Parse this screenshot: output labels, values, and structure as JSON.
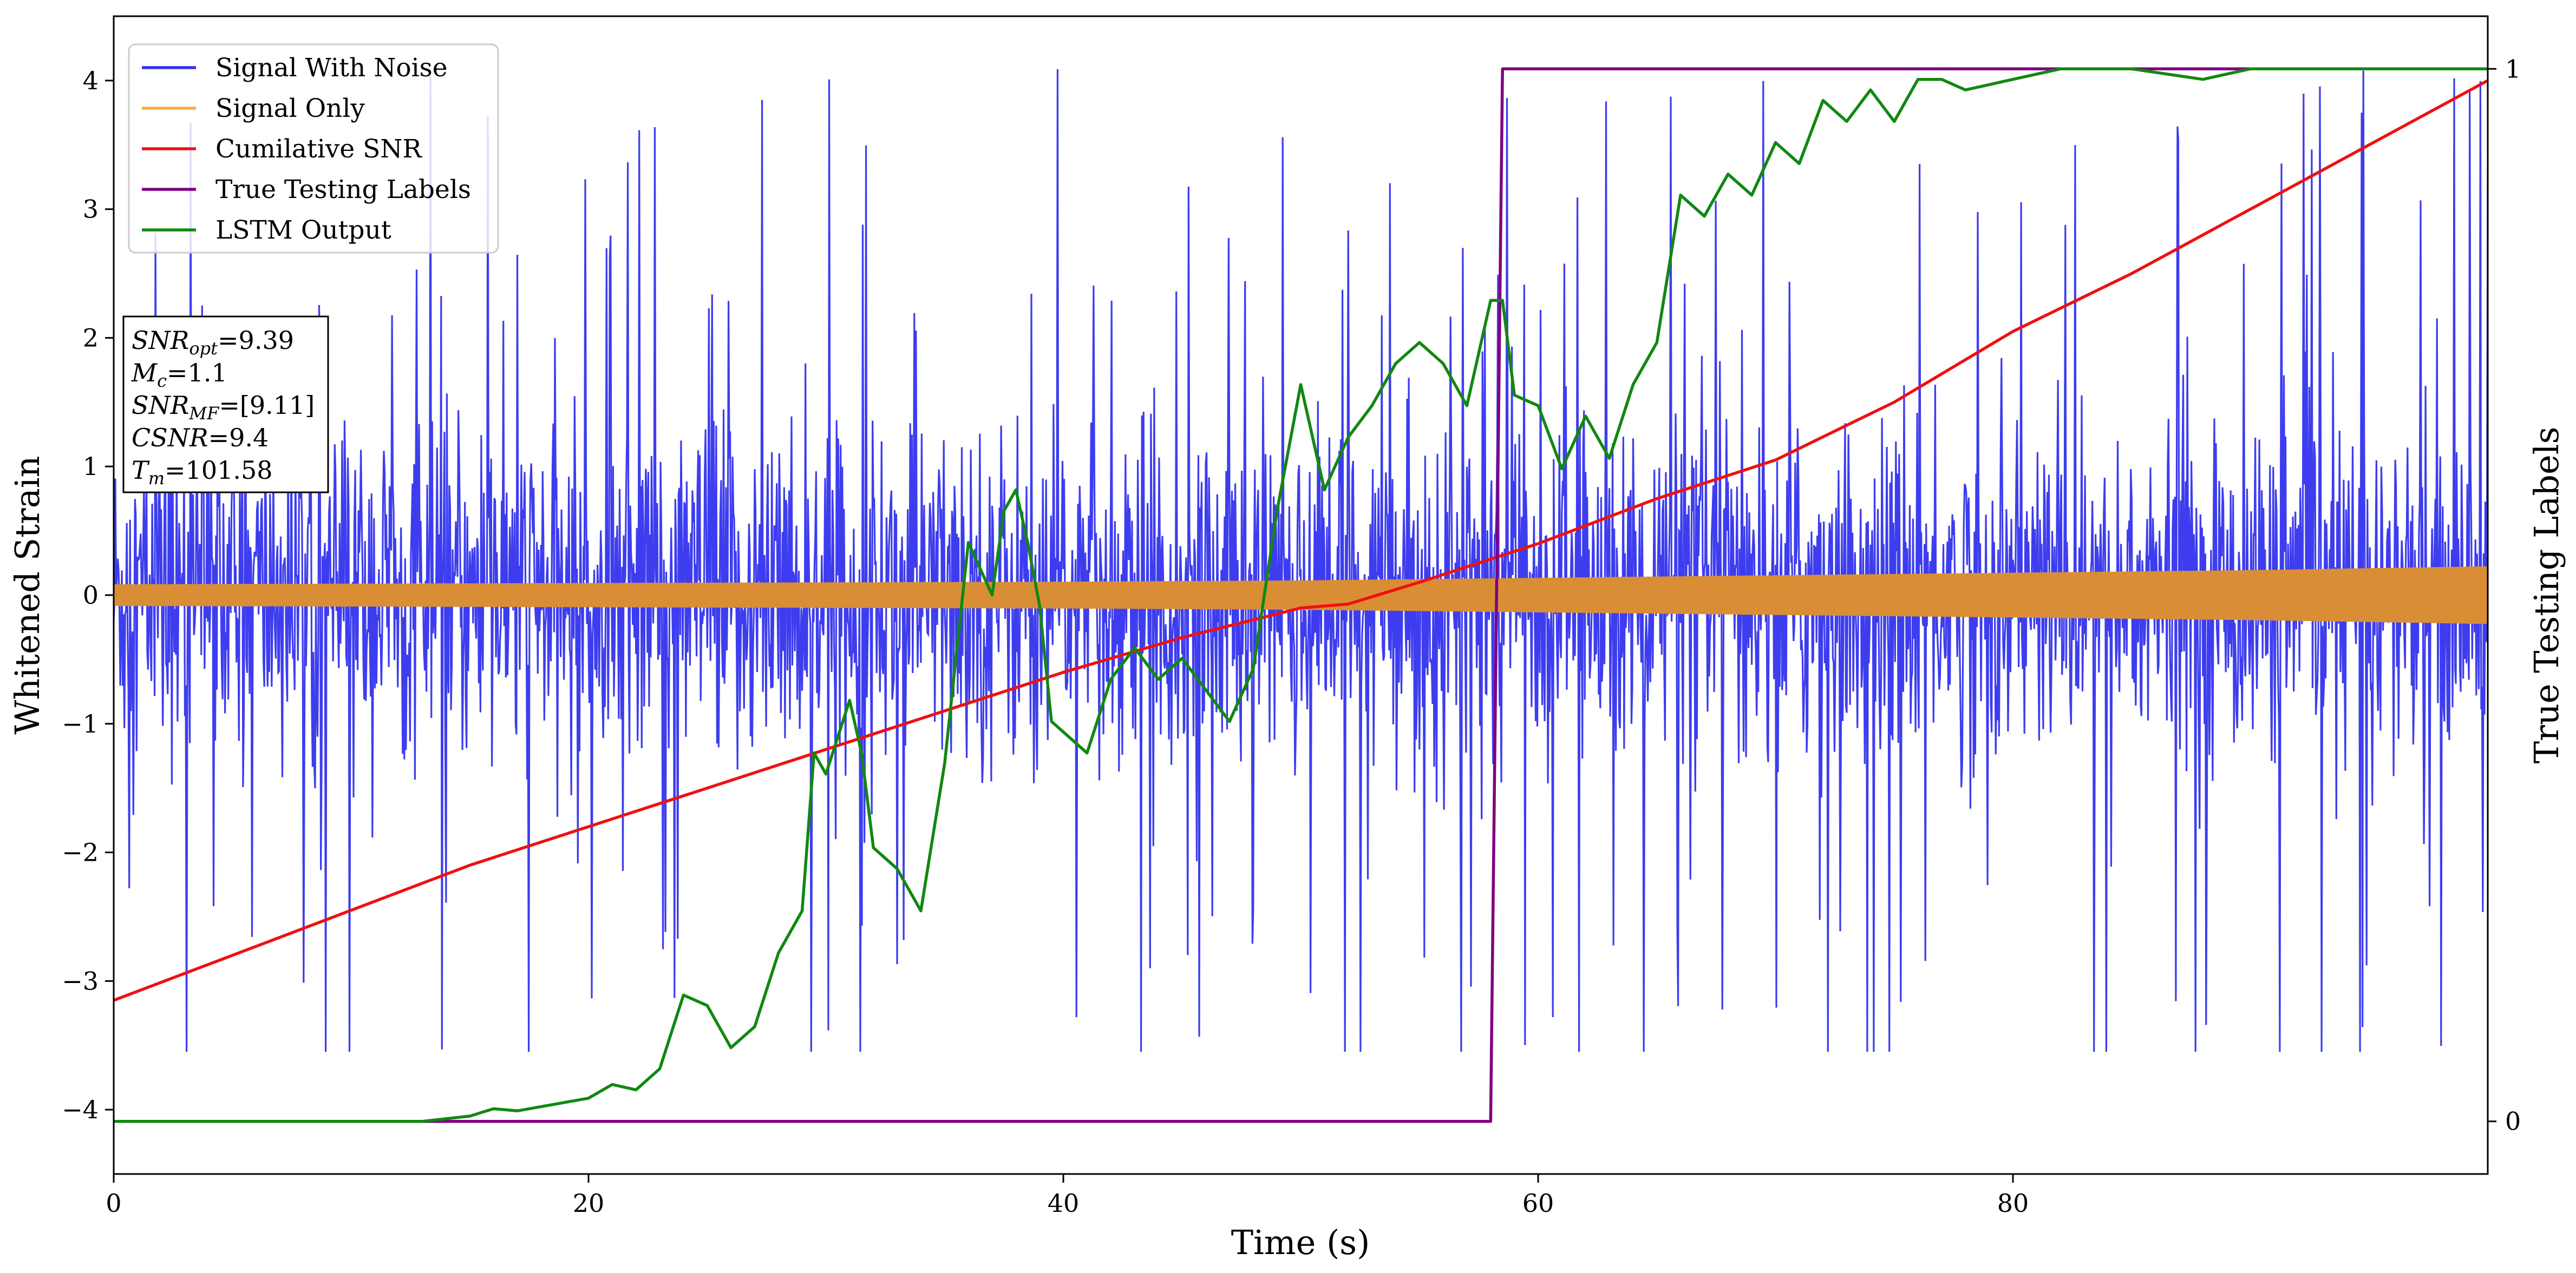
{
  "chart_data": {
    "type": "line",
    "title": "",
    "xlabel": "Time (s)",
    "ylabel": "Whitened Strain",
    "y2label": "True Testing Labels",
    "xlim": [
      0,
      100
    ],
    "ylim": [
      -4.5,
      4.5
    ],
    "y2lim": [
      -0.05,
      1.05
    ],
    "x_ticks": [
      "0",
      "20",
      "40",
      "60",
      "80"
    ],
    "x_tick_values": [
      0,
      20,
      40,
      60,
      80
    ],
    "y_ticks": [
      "-4",
      "-3",
      "-2",
      "-1",
      "0",
      "1",
      "2",
      "3",
      "4"
    ],
    "y_tick_values": [
      -4,
      -3,
      -2,
      -1,
      0,
      1,
      2,
      3,
      4
    ],
    "y2_ticks": [
      "0",
      "1"
    ],
    "y2_tick_values": [
      0,
      1
    ],
    "grid": false,
    "legend_position": "top-left",
    "legend": [
      {
        "name": "Signal With Noise",
        "color": "#3333ee"
      },
      {
        "name": "Signal Only",
        "color": "#f5b041"
      },
      {
        "name": "Cumilative SNR",
        "color": "#ee1111"
      },
      {
        "name": "True Testing Labels",
        "color": "#800080"
      },
      {
        "name": "LSTM Output",
        "color": "#118811"
      }
    ],
    "annotation": [
      {
        "base": "SNR",
        "sub": "opt",
        "value": "=9.39"
      },
      {
        "base": "M",
        "sub": "c",
        "value": "=1.1"
      },
      {
        "base": "SNR",
        "sub": "MF",
        "value": "=[9.11]"
      },
      {
        "base": "CSNR",
        "sub": "",
        "value": "=9.4"
      },
      {
        "base": "T",
        "sub": "m",
        "value": "=101.58"
      }
    ],
    "series": [
      {
        "name": "Signal With Noise",
        "axis": "left",
        "color": "#3333ee",
        "noise_std": 1.05,
        "noise_extreme": 4.1
      },
      {
        "name": "Signal Only",
        "axis": "left",
        "color": "#d98e36",
        "x": [
          0,
          10,
          20,
          30,
          40,
          50,
          60,
          70,
          80,
          90,
          100
        ],
        "amplitude": [
          0.08,
          0.085,
          0.09,
          0.095,
          0.1,
          0.11,
          0.13,
          0.15,
          0.17,
          0.19,
          0.22
        ]
      },
      {
        "name": "Cumilative SNR",
        "axis": "left",
        "color": "#ee1111",
        "x": [
          0,
          5,
          10,
          15,
          20,
          25,
          30,
          35,
          40,
          45,
          50,
          52,
          55,
          60,
          65,
          70,
          75,
          80,
          85,
          90,
          95,
          100
        ],
        "y": [
          -3.15,
          -2.8,
          -2.45,
          -2.1,
          -1.8,
          -1.5,
          -1.2,
          -0.9,
          -0.6,
          -0.33,
          -0.1,
          -0.07,
          0.1,
          0.4,
          0.75,
          1.05,
          1.5,
          2.05,
          2.5,
          3.0,
          3.5,
          4.0
        ]
      },
      {
        "name": "True Testing Labels",
        "axis": "right",
        "color": "#800080",
        "x": [
          0,
          58.0,
          58.5,
          100
        ],
        "y": [
          0,
          0,
          1,
          1
        ]
      },
      {
        "name": "LSTM Output",
        "axis": "right",
        "color": "#118811",
        "x": [
          0,
          13,
          15,
          16,
          17,
          19,
          20,
          21,
          22,
          23,
          24,
          25,
          26,
          27,
          28,
          29,
          29.5,
          30,
          31,
          31.5,
          32,
          33,
          34,
          34.5,
          35,
          36,
          37,
          37.5,
          38,
          38.5,
          39,
          39.5,
          40,
          41,
          42,
          43,
          44,
          45,
          46,
          47,
          48,
          49,
          50,
          51,
          52,
          53,
          54,
          55,
          56,
          57,
          58,
          58.5,
          59,
          60,
          61,
          62,
          63,
          64,
          65,
          66,
          67,
          68,
          69,
          70,
          71,
          72,
          73,
          74,
          75,
          76,
          77,
          78,
          80,
          82,
          85,
          88,
          90,
          92,
          95,
          97,
          100
        ],
        "y": [
          0,
          0,
          0.005,
          0.012,
          0.01,
          0.018,
          0.022,
          0.035,
          0.03,
          0.05,
          0.12,
          0.11,
          0.07,
          0.09,
          0.16,
          0.2,
          0.35,
          0.33,
          0.4,
          0.35,
          0.26,
          0.24,
          0.2,
          0.27,
          0.34,
          0.55,
          0.5,
          0.58,
          0.6,
          0.55,
          0.49,
          0.38,
          0.37,
          0.35,
          0.42,
          0.45,
          0.42,
          0.44,
          0.41,
          0.38,
          0.43,
          0.58,
          0.7,
          0.6,
          0.65,
          0.68,
          0.72,
          0.74,
          0.72,
          0.68,
          0.78,
          0.78,
          0.69,
          0.68,
          0.62,
          0.67,
          0.63,
          0.7,
          0.74,
          0.88,
          0.86,
          0.9,
          0.88,
          0.93,
          0.91,
          0.97,
          0.95,
          0.98,
          0.95,
          0.99,
          0.99,
          0.98,
          0.99,
          1.0,
          1.0,
          0.99,
          1.0,
          1.0,
          1.0,
          1.0,
          1.0
        ]
      }
    ]
  }
}
